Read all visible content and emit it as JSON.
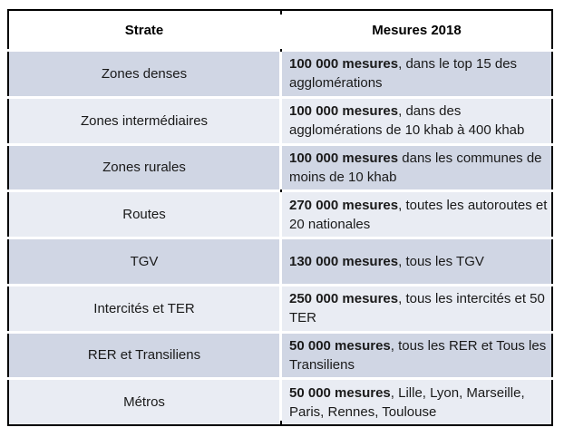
{
  "table": {
    "header": {
      "strate": "Strate",
      "measures": "Mesures 2018"
    },
    "rows": [
      {
        "strate": "Zones denses",
        "measure_bold": "100 000 mesures",
        "measure_rest": ", dans le top 15 des agglomérations"
      },
      {
        "strate": "Zones intermédiaires",
        "measure_bold": "100 000 mesures",
        "measure_rest": ", dans des agglomérations de 10 khab à 400 khab"
      },
      {
        "strate": "Zones rurales",
        "measure_bold": "100 000 mesures",
        "measure_rest": " dans les communes de moins de 10 khab"
      },
      {
        "strate": "Routes",
        "measure_bold": "270 000 mesures",
        "measure_rest": ", toutes les autoroutes et 20 nationales"
      },
      {
        "strate": "TGV",
        "measure_bold": "130 000 mesures",
        "measure_rest": ", tous les TGV"
      },
      {
        "strate": "Intercités et TER",
        "measure_bold": "250 000 mesures",
        "measure_rest": ", tous les intercités et 50 TER"
      },
      {
        "strate": "RER et Transiliens",
        "measure_bold": "50 000 mesures",
        "measure_rest": ", tous les RER et Tous les Transiliens"
      },
      {
        "strate": "Métros",
        "measure_bold": "50 000 mesures",
        "measure_rest": ", Lille, Lyon, Marseille, Paris, Rennes, Toulouse"
      }
    ],
    "colors": {
      "row_shaded_dark": "#d0d6e4",
      "row_shaded_light": "#e9ecf3",
      "border": "#000000",
      "gridline": "#ffffff",
      "header_bg": "#ffffff",
      "text": "#1a1a1a"
    }
  }
}
